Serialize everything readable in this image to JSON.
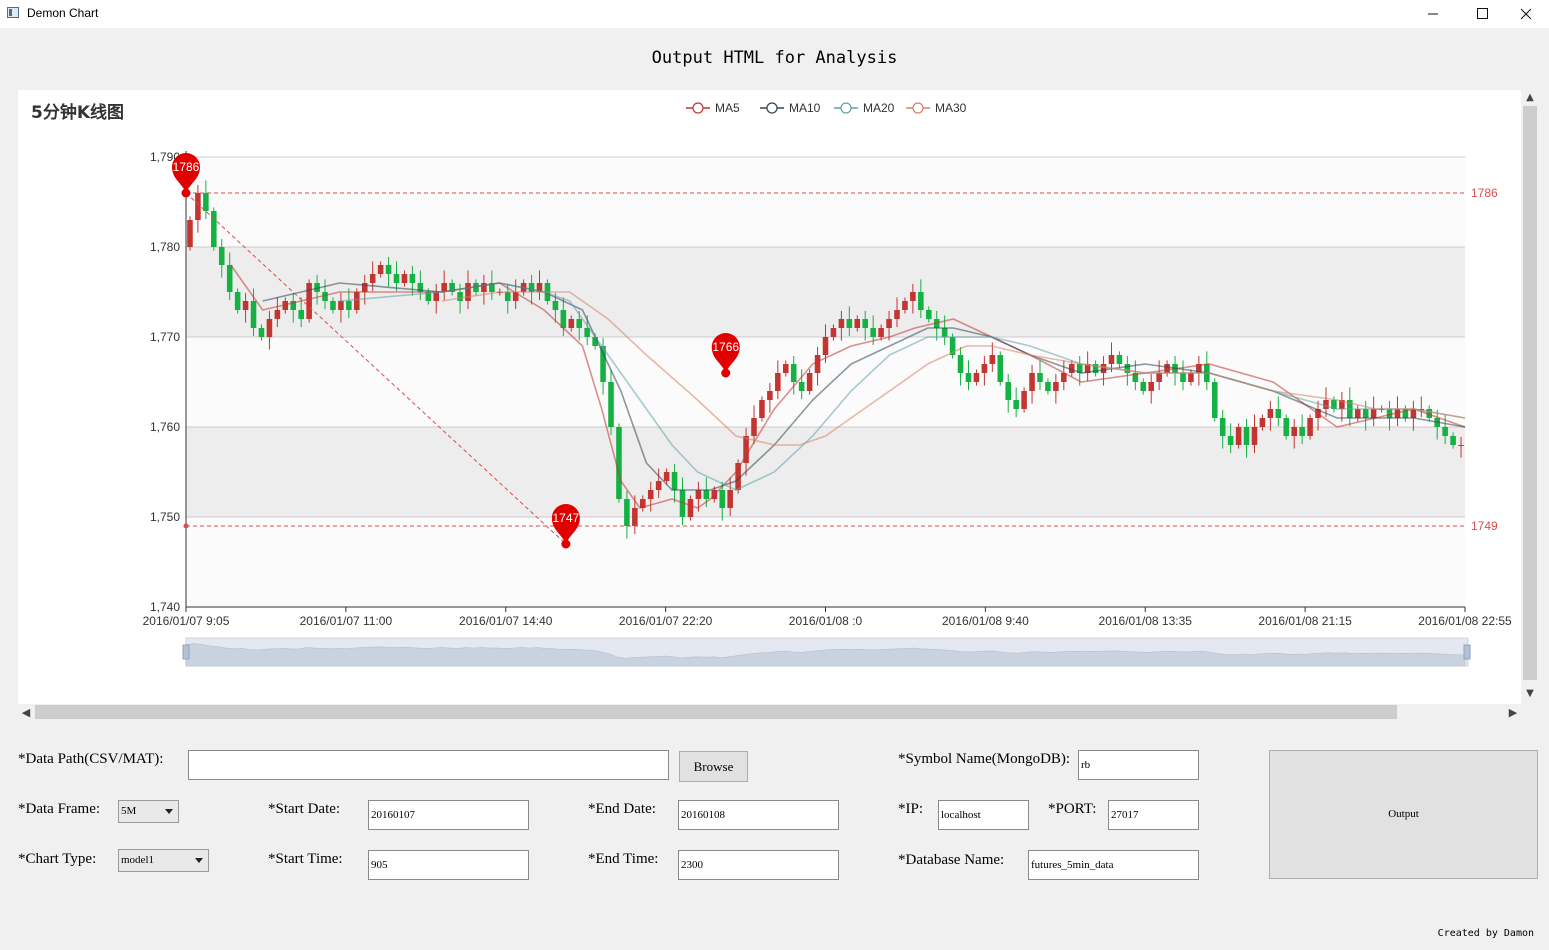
{
  "window": {
    "title": "Demon Chart"
  },
  "heading": "Output HTML for Analysis",
  "chart_data": {
    "type": "candlestick",
    "title": "5分钟K线图",
    "legend": [
      "MA5",
      "MA10",
      "MA20",
      "MA30"
    ],
    "legend_colors": [
      "#c23531",
      "#2f4554",
      "#61a0a8",
      "#d48265"
    ],
    "up_color": "#c23531",
    "down_color": "#14b143",
    "ylim": [
      1740,
      1790
    ],
    "yticks": [
      "1,740",
      "1,750",
      "1,760",
      "1,770",
      "1,780",
      "1,790"
    ],
    "xticks": [
      "2016/01/07 9:05",
      "2016/01/07 11:00",
      "2016/01/07 14:40",
      "2016/01/07 22:20",
      "2016/01/08 :0",
      "2016/01/08 9:40",
      "2016/01/08 13:35",
      "2016/01/08 21:15",
      "2016/01/08 22:55"
    ],
    "legend_position": "top-center",
    "closes": [
      1783,
      1786,
      1784,
      1780,
      1778,
      1775,
      1773,
      1774,
      1771,
      1770,
      1772,
      1773,
      1774,
      1773,
      1772,
      1776,
      1775,
      1774,
      1773,
      1774,
      1773,
      1775,
      1776,
      1777,
      1778,
      1777,
      1776,
      1777,
      1776,
      1775,
      1774,
      1775,
      1776,
      1775,
      1774,
      1776,
      1775,
      1776,
      1775,
      1775,
      1774,
      1775,
      1776,
      1775,
      1776,
      1774,
      1773,
      1771,
      1772,
      1771,
      1770,
      1769,
      1765,
      1760,
      1752,
      1749,
      1751,
      1752,
      1753,
      1754,
      1755,
      1753,
      1750,
      1752,
      1753,
      1752,
      1753,
      1751,
      1753,
      1756,
      1759,
      1761,
      1763,
      1764,
      1766,
      1767,
      1765,
      1764,
      1766,
      1768,
      1770,
      1771,
      1772,
      1771,
      1772,
      1771,
      1770,
      1771,
      1772,
      1773,
      1774,
      1775,
      1773,
      1772,
      1771,
      1770,
      1768,
      1766,
      1765,
      1766,
      1767,
      1768,
      1765,
      1763,
      1762,
      1764,
      1766,
      1765,
      1764,
      1765,
      1766,
      1767,
      1766,
      1767,
      1766,
      1767,
      1768,
      1767,
      1766,
      1765,
      1764,
      1765,
      1766,
      1767,
      1766,
      1765,
      1766,
      1767,
      1765,
      1761,
      1759,
      1758,
      1760,
      1758,
      1760,
      1761,
      1762,
      1761,
      1759,
      1760,
      1759,
      1761,
      1762,
      1763,
      1762,
      1763,
      1761,
      1762,
      1761,
      1762,
      1762,
      1761,
      1762,
      1761,
      1762,
      1762,
      1761,
      1760,
      1759,
      1758,
      1758
    ],
    "ma": {
      "MA5": [
        [
          0.035,
          1778
        ],
        [
          0.06,
          1773
        ],
        [
          0.12,
          1775
        ],
        [
          0.2,
          1775
        ],
        [
          0.245,
          1776
        ],
        [
          0.28,
          1773
        ],
        [
          0.31,
          1769
        ],
        [
          0.325,
          1762
        ],
        [
          0.34,
          1754
        ],
        [
          0.355,
          1751
        ],
        [
          0.38,
          1752
        ],
        [
          0.4,
          1751
        ],
        [
          0.41,
          1752
        ],
        [
          0.43,
          1755
        ],
        [
          0.46,
          1762
        ],
        [
          0.49,
          1767
        ],
        [
          0.52,
          1769
        ],
        [
          0.55,
          1770
        ],
        [
          0.57,
          1771
        ],
        [
          0.6,
          1772
        ],
        [
          0.63,
          1770
        ],
        [
          0.66,
          1768
        ],
        [
          0.7,
          1765
        ],
        [
          0.75,
          1766
        ],
        [
          0.8,
          1767
        ],
        [
          0.85,
          1765
        ],
        [
          0.9,
          1760
        ],
        [
          0.93,
          1761
        ],
        [
          0.96,
          1762
        ],
        [
          1.0,
          1760
        ]
      ],
      "MA10": [
        [
          0.06,
          1774
        ],
        [
          0.12,
          1776
        ],
        [
          0.2,
          1775
        ],
        [
          0.245,
          1776
        ],
        [
          0.28,
          1775
        ],
        [
          0.31,
          1773
        ],
        [
          0.34,
          1764
        ],
        [
          0.36,
          1756
        ],
        [
          0.38,
          1753
        ],
        [
          0.41,
          1753
        ],
        [
          0.43,
          1754
        ],
        [
          0.46,
          1758
        ],
        [
          0.49,
          1763
        ],
        [
          0.52,
          1767
        ],
        [
          0.55,
          1769
        ],
        [
          0.58,
          1771
        ],
        [
          0.6,
          1771
        ],
        [
          0.63,
          1770
        ],
        [
          0.66,
          1768
        ],
        [
          0.7,
          1766
        ],
        [
          0.75,
          1767
        ],
        [
          0.8,
          1766
        ],
        [
          0.85,
          1764
        ],
        [
          0.9,
          1761
        ],
        [
          0.93,
          1761
        ],
        [
          0.96,
          1761
        ],
        [
          1.0,
          1760
        ]
      ],
      "MA20": [
        [
          0.12,
          1774
        ],
        [
          0.2,
          1775
        ],
        [
          0.245,
          1776
        ],
        [
          0.28,
          1775
        ],
        [
          0.3,
          1774
        ],
        [
          0.33,
          1768
        ],
        [
          0.36,
          1762
        ],
        [
          0.38,
          1758
        ],
        [
          0.4,
          1755
        ],
        [
          0.43,
          1753
        ],
        [
          0.46,
          1755
        ],
        [
          0.49,
          1759
        ],
        [
          0.52,
          1764
        ],
        [
          0.55,
          1768
        ],
        [
          0.58,
          1770
        ],
        [
          0.61,
          1770
        ],
        [
          0.63,
          1770
        ],
        [
          0.66,
          1769
        ],
        [
          0.7,
          1767
        ],
        [
          0.75,
          1766
        ],
        [
          0.8,
          1766
        ],
        [
          0.85,
          1764
        ],
        [
          0.9,
          1762
        ],
        [
          0.93,
          1762
        ],
        [
          0.96,
          1762
        ],
        [
          1.0,
          1761
        ]
      ],
      "MA30": [
        [
          0.2,
          1774
        ],
        [
          0.245,
          1775
        ],
        [
          0.28,
          1775
        ],
        [
          0.3,
          1775
        ],
        [
          0.33,
          1772
        ],
        [
          0.36,
          1768
        ],
        [
          0.4,
          1763
        ],
        [
          0.43,
          1759
        ],
        [
          0.46,
          1758
        ],
        [
          0.48,
          1758
        ],
        [
          0.5,
          1759
        ],
        [
          0.52,
          1761
        ],
        [
          0.55,
          1764
        ],
        [
          0.58,
          1767
        ],
        [
          0.61,
          1769
        ],
        [
          0.63,
          1769
        ],
        [
          0.66,
          1768
        ],
        [
          0.7,
          1767
        ],
        [
          0.75,
          1766
        ],
        [
          0.8,
          1766
        ],
        [
          0.85,
          1764
        ],
        [
          0.9,
          1763
        ],
        [
          0.93,
          1762
        ],
        [
          0.96,
          1762
        ],
        [
          1.0,
          1761
        ]
      ]
    },
    "mark_points": [
      {
        "label": "1786",
        "x": 0,
        "y": 1786
      },
      {
        "label": "1747",
        "x": 0.297,
        "y": 1747
      },
      {
        "label": "1766",
        "x": 0.422,
        "y": 1766
      }
    ],
    "mark_lines": [
      {
        "label": "1786",
        "y": 1786
      },
      {
        "label": "1749",
        "y": 1749
      }
    ]
  },
  "form": {
    "data_path_label": "*Data Path(CSV/MAT):",
    "data_path_value": "",
    "browse_label": "Browse",
    "symbol_label": "*Symbol Name(MongoDB):",
    "symbol_value": "rb",
    "data_frame_label": "*Data Frame:",
    "data_frame_value": "5M",
    "start_date_label": "*Start Date:",
    "start_date_value": "20160107",
    "end_date_label": "*End Date:",
    "end_date_value": "20160108",
    "ip_label": "*IP:",
    "ip_value": "localhost",
    "port_label": "*PORT:",
    "port_value": "27017",
    "chart_type_label": "*Chart Type:",
    "chart_type_value": "model1",
    "start_time_label": "*Start Time:",
    "start_time_value": "905",
    "end_time_label": "*End Time:",
    "end_time_value": "2300",
    "db_name_label": "*Database Name:",
    "db_name_value": "futures_5min_data",
    "output_label": "Output"
  },
  "footer": "Created by Damon"
}
